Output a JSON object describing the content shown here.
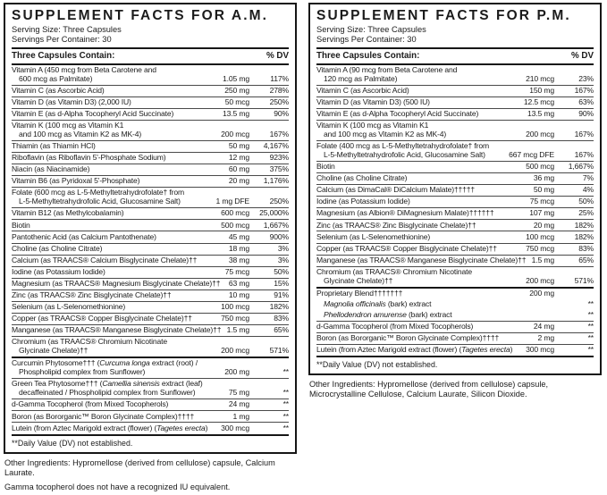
{
  "colors": {
    "ink": "#1b1b1b",
    "rule": "#4a4a4a",
    "border": "#161616",
    "background": "#ffffff"
  },
  "panels": [
    {
      "title": "SUPPLEMENT FACTS FOR A.M.",
      "serving_size": "Serving Size: Three Capsules",
      "servings_per_container": "Servings Per Container: 30",
      "header_left": "Three Capsules Contain:",
      "header_right": "% DV",
      "rows": [
        {
          "lines": [
            "Vitamin A (450 mcg from Beta Carotene and",
            "600 mcg as Palmitate)"
          ],
          "amount": "1.05 mg",
          "dv": "117%",
          "rule": "none"
        },
        {
          "lines": [
            "Vitamin C (as Ascorbic Acid)"
          ],
          "amount": "250 mg",
          "dv": "278%"
        },
        {
          "lines": [
            "Vitamin D (as Vitamin D3) (2,000 IU)"
          ],
          "amount": "50 mcg",
          "dv": "250%"
        },
        {
          "lines": [
            "Vitamin E (as d-Alpha Tocopheryl Acid Succinate)"
          ],
          "amount": "13.5 mg",
          "dv": "90%"
        },
        {
          "lines": [
            "Vitamin K (100 mcg as Vitamin K1",
            "and 100 mcg as Vitamin K2 as MK-4)"
          ],
          "amount": "200 mcg",
          "dv": "167%"
        },
        {
          "lines": [
            "Thiamin (as Thiamin HCl)"
          ],
          "amount": "50 mg",
          "dv": "4,167%"
        },
        {
          "lines": [
            "Riboflavin (as Riboflavin 5'-Phosphate Sodium)"
          ],
          "amount": "12 mg",
          "dv": "923%"
        },
        {
          "lines": [
            "Niacin (as Niacinamide)"
          ],
          "amount": "60 mg",
          "dv": "375%"
        },
        {
          "lines": [
            "Vitamin B6 (as Pyridoxal 5'-Phosphate)"
          ],
          "amount": "20 mg",
          "dv": "1,176%"
        },
        {
          "lines": [
            "Folate (600 mcg as L-5-Methyltetrahydrofolate† from",
            "L-5-Methyltetrahydrofolic Acid, Glucosamine Salt)"
          ],
          "amount": "1 mg DFE",
          "dv": "250%"
        },
        {
          "lines": [
            "Vitamin B12 (as Methylcobalamin)"
          ],
          "amount": "600 mcg",
          "dv": "25,000%"
        },
        {
          "lines": [
            "Biotin"
          ],
          "amount": "500 mcg",
          "dv": "1,667%"
        },
        {
          "lines": [
            "Pantothenic Acid (as Calcium Pantothenate)"
          ],
          "amount": "45 mg",
          "dv": "900%"
        },
        {
          "lines": [
            "Choline (as Choline Citrate)"
          ],
          "amount": "18 mg",
          "dv": "3%"
        },
        {
          "lines": [
            "Calcium (as TRAACS® Calcium Bisglycinate Chelate)††"
          ],
          "amount": "38 mg",
          "dv": "3%"
        },
        {
          "lines": [
            "Iodine (as Potassium Iodide)"
          ],
          "amount": "75 mcg",
          "dv": "50%"
        },
        {
          "lines": [
            "Magnesium (as TRAACS® Magnesium Bisglycinate Chelate)††"
          ],
          "amount": "63 mg",
          "dv": "15%"
        },
        {
          "lines": [
            "Zinc (as TRAACS® Zinc Bisglycinate Chelate)††"
          ],
          "amount": "10 mg",
          "dv": "91%"
        },
        {
          "lines": [
            "Selenium (as L-Selenomethionine)"
          ],
          "amount": "100 mcg",
          "dv": "182%"
        },
        {
          "lines": [
            "Copper (as TRAACS® Copper Bisglycinate Chelate)††"
          ],
          "amount": "750 mcg",
          "dv": "83%"
        },
        {
          "lines": [
            "Manganese (as TRAACS® Manganese Bisglycinate Chelate)††"
          ],
          "amount": "1.5 mg",
          "dv": "65%"
        },
        {
          "lines": [
            "Chromium (as TRAACS® Chromium Nicotinate",
            "Glycinate Chelate)††"
          ],
          "amount": "200 mcg",
          "dv": "571%"
        },
        {
          "lines": [
            [
              "Curcumin Phytosome††† (",
              {
                "i": "Curcuma longa"
              },
              " extract (root) /"
            ],
            "Phospholipid complex from Sunflower)"
          ],
          "amount": "200 mg",
          "dv": "**",
          "rule": "thick"
        },
        {
          "lines": [
            [
              "Green Tea Phytosome††† (",
              {
                "i": "Camellia sinensis"
              },
              " extract (leaf)"
            ],
            "decaffeinated / Phospholipid complex from Sunflower)"
          ],
          "amount": "75 mg",
          "dv": "**"
        },
        {
          "lines": [
            "d-Gamma Tocopherol (from Mixed Tocopherols)"
          ],
          "amount": "24 mg",
          "dv": "**"
        },
        {
          "lines": [
            "Boron (as Bororganic™ Boron Glycinate Complex)††††"
          ],
          "amount": "1 mg",
          "dv": "**"
        },
        {
          "lines": [
            [
              "Lutein (from Aztec Marigold extract (flower) (",
              {
                "i": "Tagetes erecta"
              },
              ")"
            ]
          ],
          "amount": "300 mcg",
          "dv": "**"
        }
      ],
      "footnote": "**Daily Value (DV) not established.",
      "notes": [
        "Other Ingredients: Hypromellose (derived from cellulose) capsule, Calcium Laurate.",
        "Gamma tocopherol does not have a recognized IU equivalent."
      ]
    },
    {
      "title": "SUPPLEMENT FACTS FOR P.M.",
      "serving_size": "Serving Size: Three Capsules",
      "servings_per_container": "Servings Per Container: 30",
      "header_left": "Three Capsules Contain:",
      "header_right": "% DV",
      "rows": [
        {
          "lines": [
            "Vitamin A (90 mcg from Beta Carotene and",
            "120 mcg as Palmitate)"
          ],
          "amount": "210 mcg",
          "dv": "23%",
          "rule": "none"
        },
        {
          "lines": [
            "Vitamin C (as Ascorbic Acid)"
          ],
          "amount": "150 mg",
          "dv": "167%"
        },
        {
          "lines": [
            "Vitamin D (as Vitamin D3) (500 IU)"
          ],
          "amount": "12.5 mcg",
          "dv": "63%"
        },
        {
          "lines": [
            "Vitamin E (as d-Alpha Tocopheryl Acid Succinate)"
          ],
          "amount": "13.5 mg",
          "dv": "90%"
        },
        {
          "lines": [
            "Vitamin K (100 mcg as Vitamin K1",
            "and 100 mcg as Vitamin K2 as MK-4)"
          ],
          "amount": "200 mcg",
          "dv": "167%"
        },
        {
          "lines": [
            "Folate (400 mcg as L-5-Methyltetrahydrofolate† from",
            "L-5-Methyltetrahydrofolic Acid, Glucosamine Salt)"
          ],
          "amount": "667 mcg DFE",
          "dv": "167%"
        },
        {
          "lines": [
            "Biotin"
          ],
          "amount": "500 mcg",
          "dv": "1,667%"
        },
        {
          "lines": [
            "Choline (as Choline Citrate)"
          ],
          "amount": "36 mg",
          "dv": "7%"
        },
        {
          "lines": [
            "Calcium (as DimaCal® DiCalcium Malate)†††††"
          ],
          "amount": "50 mg",
          "dv": "4%"
        },
        {
          "lines": [
            "Iodine (as Potassium Iodide)"
          ],
          "amount": "75 mcg",
          "dv": "50%"
        },
        {
          "lines": [
            "Magnesium (as Albion® DiMagnesium Malate)††††††"
          ],
          "amount": "107 mg",
          "dv": "25%"
        },
        {
          "lines": [
            "Zinc (as TRAACS® Zinc Bisglycinate Chelate)††"
          ],
          "amount": "20 mg",
          "dv": "182%"
        },
        {
          "lines": [
            "Selenium (as L-Selenomethionine)"
          ],
          "amount": "100 mcg",
          "dv": "182%"
        },
        {
          "lines": [
            "Copper (as TRAACS® Copper Bisglycinate Chelate)††"
          ],
          "amount": "750 mcg",
          "dv": "83%"
        },
        {
          "lines": [
            "Manganese (as TRAACS® Manganese Bisglycinate Chelate)††"
          ],
          "amount": "1.5 mg",
          "dv": "65%"
        },
        {
          "lines": [
            "Chromium (as TRAACS® Chromium Nicotinate",
            "Glycinate Chelate)††"
          ],
          "amount": "200 mcg",
          "dv": "571%"
        },
        {
          "lines": [
            "Proprietary Blend†††††††"
          ],
          "amount": "200 mg",
          "dv": "",
          "rule": "thick"
        },
        {
          "lines": [
            [
              {
                "i": "Magnolia officinalis"
              },
              " (bark) extract"
            ]
          ],
          "amount": "",
          "dv": "**",
          "rule": "none",
          "sub": true
        },
        {
          "lines": [
            [
              {
                "i": "Phellodendron amurense"
              },
              " (bark) extract"
            ]
          ],
          "amount": "",
          "dv": "**",
          "rule": "none",
          "sub": true
        },
        {
          "lines": [
            "d-Gamma Tocopherol (from Mixed Tocopherols)"
          ],
          "amount": "24 mg",
          "dv": "**"
        },
        {
          "lines": [
            "Boron (as Bororganic™ Boron Glycinate Complex)††††"
          ],
          "amount": "2 mg",
          "dv": "**"
        },
        {
          "lines": [
            [
              "Lutein (from Aztec Marigold extract (flower) (",
              {
                "i": "Tagetes erecta"
              },
              ")"
            ]
          ],
          "amount": "300 mcg",
          "dv": "**"
        }
      ],
      "footnote": "**Daily Value (DV) not established.",
      "notes": [
        "Other Ingredients: Hypromellose (derived from cellulose) capsule, Microcrystalline Cellulose, Calcium Laurate, Silicon Dioxide."
      ]
    }
  ]
}
